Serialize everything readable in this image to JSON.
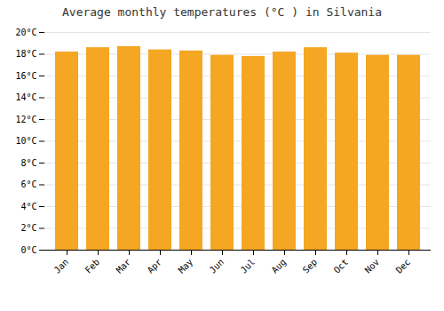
{
  "chart_data": {
    "type": "bar",
    "title": "Average monthly temperatures (°C ) in Silvania",
    "categories": [
      "Jan",
      "Feb",
      "Mar",
      "Apr",
      "May",
      "Jun",
      "Jul",
      "Aug",
      "Sep",
      "Oct",
      "Nov",
      "Dec"
    ],
    "values": [
      18.2,
      18.6,
      18.7,
      18.4,
      18.3,
      17.9,
      17.8,
      18.2,
      18.6,
      18.1,
      17.9,
      17.9
    ],
    "color": "#F5A623",
    "ylim": [
      0,
      20
    ],
    "yticks": [
      {
        "value": 0,
        "label": "0°C"
      },
      {
        "value": 2,
        "label": "2°C"
      },
      {
        "value": 4,
        "label": "4°C"
      },
      {
        "value": 6,
        "label": "6°C"
      },
      {
        "value": 8,
        "label": "8°C"
      },
      {
        "value": 10,
        "label": "10°C"
      },
      {
        "value": 12,
        "label": "12°C"
      },
      {
        "value": 14,
        "label": "14°C"
      },
      {
        "value": 16,
        "label": "16°C"
      },
      {
        "value": 18,
        "label": "18°C"
      },
      {
        "value": 20,
        "label": "20°C"
      }
    ],
    "grid": true
  }
}
